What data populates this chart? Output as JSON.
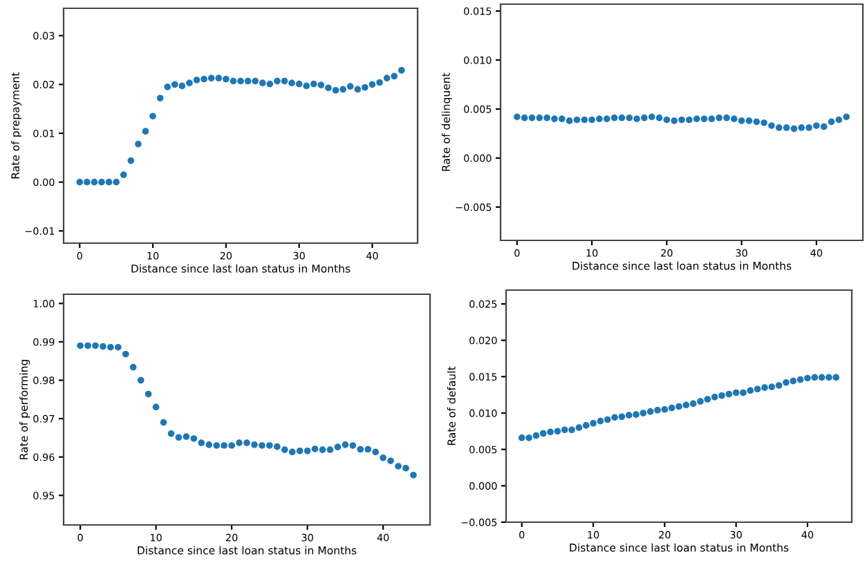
{
  "chart_data": [
    {
      "type": "scatter",
      "xlabel": "Distance since last loan status in Months",
      "ylabel": "Rate of prepayment",
      "x": [
        0,
        1,
        2,
        3,
        4,
        5,
        6,
        7,
        8,
        9,
        10,
        11,
        12,
        13,
        14,
        15,
        16,
        17,
        18,
        19,
        20,
        21,
        22,
        23,
        24,
        25,
        26,
        27,
        28,
        29,
        30,
        31,
        32,
        33,
        34,
        35,
        36,
        37,
        38,
        39,
        40,
        41,
        42,
        43,
        44
      ],
      "series": [
        {
          "color": "#1f77b4",
          "values": [
            0,
            0,
            0,
            0,
            0,
            0,
            0.0015,
            0.0044,
            0.0078,
            0.0104,
            0.0135,
            0.0172,
            0.0195,
            0.02,
            0.0197,
            0.0203,
            0.0209,
            0.0211,
            0.0213,
            0.0213,
            0.0211,
            0.0207,
            0.0207,
            0.0207,
            0.0207,
            0.0203,
            0.0201,
            0.0207,
            0.0207,
            0.0203,
            0.0201,
            0.0197,
            0.0201,
            0.0199,
            0.0193,
            0.0188,
            0.019,
            0.0196,
            0.019,
            0.0194,
            0.02,
            0.0204,
            0.0213,
            0.0217,
            0.0229
          ]
        }
      ],
      "xlim": [
        -2.2,
        46.2
      ],
      "xticks": [
        0,
        10,
        20,
        30,
        40
      ],
      "ylim": [
        -0.0125,
        0.0356
      ],
      "yticks": [
        {
          "value": -0.01,
          "label": "−0.01"
        },
        {
          "value": 0,
          "label": "0.00"
        },
        0.01,
        0.02,
        0.03
      ],
      "marker": "circle",
      "grid": false,
      "legend": false
    },
    {
      "type": "scatter",
      "xlabel": "Distance since last loan status in Months",
      "ylabel": "Rate of delinquent",
      "x": [
        0,
        1,
        2,
        3,
        4,
        5,
        6,
        7,
        8,
        9,
        10,
        11,
        12,
        13,
        14,
        15,
        16,
        17,
        18,
        19,
        20,
        21,
        22,
        23,
        24,
        25,
        26,
        27,
        28,
        29,
        30,
        31,
        32,
        33,
        34,
        35,
        36,
        37,
        38,
        39,
        40,
        41,
        42,
        43,
        44
      ],
      "series": [
        {
          "color": "#1f77b4",
          "values": [
            0.0042,
            0.0041,
            0.0041,
            0.0041,
            0.0041,
            0.004,
            0.004,
            0.0038,
            0.0039,
            0.0039,
            0.0039,
            0.004,
            0.004,
            0.0041,
            0.0041,
            0.0041,
            0.004,
            0.0041,
            0.0042,
            0.0041,
            0.0039,
            0.0038,
            0.0039,
            0.0039,
            0.004,
            0.004,
            0.004,
            0.0041,
            0.0041,
            0.004,
            0.0038,
            0.0038,
            0.0037,
            0.0036,
            0.0033,
            0.0031,
            0.0031,
            0.003,
            0.0031,
            0.0031,
            0.0033,
            0.0032,
            0.0037,
            0.0039,
            0.0042
          ]
        }
      ],
      "xlim": [
        -2.2,
        46.2
      ],
      "xticks": [
        0,
        10,
        20,
        30,
        40
      ],
      "ylim": [
        -0.0084,
        0.0157
      ],
      "yticks": [
        {
          "value": -0.005,
          "label": "−0.005"
        },
        {
          "value": 0,
          "label": "0.000"
        },
        0.005,
        {
          "value": 0.01,
          "label": "0.010"
        },
        0.015
      ],
      "marker": "circle",
      "grid": false,
      "legend": false
    },
    {
      "type": "scatter",
      "xlabel": "Distance since last loan status in Months",
      "ylabel": "Rate of performing",
      "x": [
        0,
        1,
        2,
        3,
        4,
        5,
        6,
        7,
        8,
        9,
        10,
        11,
        12,
        13,
        14,
        15,
        16,
        17,
        18,
        19,
        20,
        21,
        22,
        23,
        24,
        25,
        26,
        27,
        28,
        29,
        30,
        31,
        32,
        33,
        34,
        35,
        36,
        37,
        38,
        39,
        40,
        41,
        42,
        43,
        44
      ],
      "series": [
        {
          "color": "#1f77b4",
          "values": [
            0.989,
            0.989,
            0.989,
            0.9888,
            0.9886,
            0.9886,
            0.9868,
            0.9834,
            0.98,
            0.9764,
            0.973,
            0.969,
            0.9661,
            0.9651,
            0.9653,
            0.9648,
            0.9637,
            0.9632,
            0.963,
            0.963,
            0.963,
            0.9637,
            0.9637,
            0.9632,
            0.963,
            0.963,
            0.9627,
            0.9619,
            0.9613,
            0.9616,
            0.9616,
            0.9621,
            0.9619,
            0.9619,
            0.9626,
            0.9632,
            0.963,
            0.962,
            0.962,
            0.9613,
            0.9598,
            0.959,
            0.9576,
            0.9571,
            0.9553
          ]
        }
      ],
      "xlim": [
        -2.2,
        46.2
      ],
      "xticks": [
        0,
        10,
        20,
        30,
        40
      ],
      "ylim": [
        0.9423,
        1.0024
      ],
      "yticks": [
        0.95,
        0.96,
        0.97,
        0.98,
        0.99,
        {
          "value": 1.0,
          "label": "1.00"
        }
      ],
      "marker": "circle",
      "grid": false,
      "legend": false
    },
    {
      "type": "scatter",
      "xlabel": "Distance since last loan status in Months",
      "ylabel": "Rate of default",
      "x": [
        0,
        1,
        2,
        3,
        4,
        5,
        6,
        7,
        8,
        9,
        10,
        11,
        12,
        13,
        14,
        15,
        16,
        17,
        18,
        19,
        20,
        21,
        22,
        23,
        24,
        25,
        26,
        27,
        28,
        29,
        30,
        31,
        32,
        33,
        34,
        35,
        36,
        37,
        38,
        39,
        40,
        41,
        42,
        43,
        44
      ],
      "series": [
        {
          "color": "#1f77b4",
          "values": [
            0.0066,
            0.0066,
            0.0069,
            0.0072,
            0.0074,
            0.0075,
            0.0077,
            0.0077,
            0.008,
            0.0083,
            0.0086,
            0.0089,
            0.0091,
            0.0094,
            0.0095,
            0.0097,
            0.0098,
            0.01,
            0.0102,
            0.0104,
            0.0105,
            0.0107,
            0.0109,
            0.0111,
            0.0113,
            0.0116,
            0.0119,
            0.0122,
            0.0124,
            0.0126,
            0.0128,
            0.0128,
            0.0131,
            0.0133,
            0.0135,
            0.0136,
            0.0138,
            0.0142,
            0.0144,
            0.0146,
            0.0148,
            0.0149,
            0.0149,
            0.0149,
            0.0149
          ]
        }
      ],
      "xlim": [
        -2.2,
        46.2
      ],
      "xticks": [
        0,
        10,
        20,
        30,
        40
      ],
      "ylim": [
        -0.005,
        0.0269
      ],
      "yticks": [
        {
          "value": -0.005,
          "label": "−0.005"
        },
        {
          "value": 0,
          "label": "0.000"
        },
        0.005,
        {
          "value": 0.01,
          "label": "0.010"
        },
        {
          "value": 0.015,
          "label": "0.015"
        },
        {
          "value": 0.02,
          "label": "0.020"
        },
        0.025
      ],
      "marker": "circle",
      "grid": false,
      "legend": false
    }
  ]
}
